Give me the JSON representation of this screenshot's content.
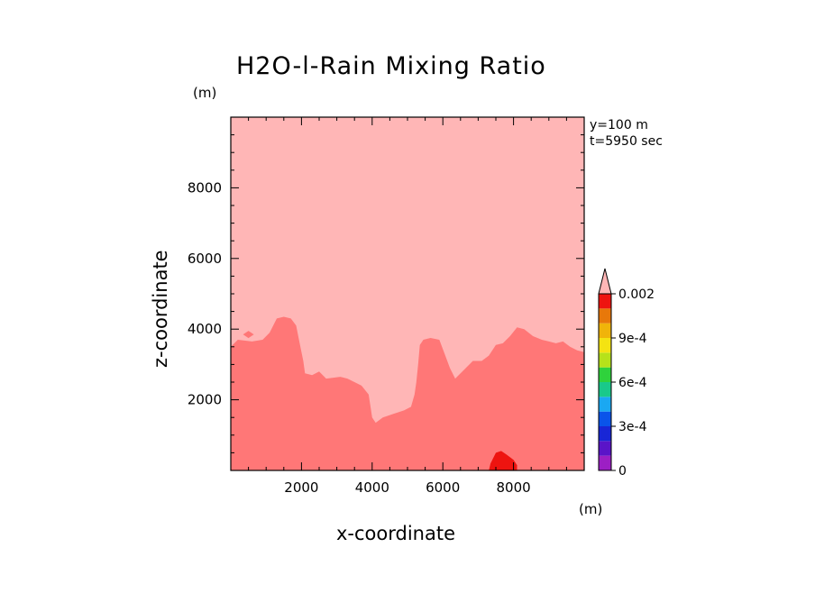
{
  "chart_data": {
    "type": "heatmap",
    "subtype": "filled-contour",
    "title": "H2O-l-Rain Mixing Ratio",
    "xlabel": "x-coordinate",
    "ylabel": "z-coordinate",
    "x_unit": "(m)",
    "y_unit": "(m)",
    "xlim": [
      0,
      10000
    ],
    "ylim": [
      0,
      10000
    ],
    "x_ticks": [
      {
        "value": 2000,
        "label": "2000"
      },
      {
        "value": 4000,
        "label": "4000"
      },
      {
        "value": 6000,
        "label": "6000"
      },
      {
        "value": 8000,
        "label": "8000"
      }
    ],
    "y_ticks": [
      {
        "value": 2000,
        "label": "2000"
      },
      {
        "value": 4000,
        "label": "4000"
      },
      {
        "value": 6000,
        "label": "6000"
      },
      {
        "value": 8000,
        "label": "8000"
      }
    ],
    "info_lines": [
      "y=100 m",
      "t=5950 sec"
    ],
    "colorbar": {
      "levels": [
        {
          "value": 0,
          "color": "#9c1fc4"
        },
        {
          "value": 0.0001,
          "color": "#5a14c8"
        },
        {
          "value": 0.0002,
          "color": "#1826d6"
        },
        {
          "value": 0.0003,
          "color": "#0a54ea"
        },
        {
          "value": 0.0004,
          "color": "#1aa8f2"
        },
        {
          "value": 0.0005,
          "color": "#19c98a"
        },
        {
          "value": 0.0006,
          "color": "#2fd23c"
        },
        {
          "value": 0.0007,
          "color": "#b6e21a"
        },
        {
          "value": 0.0008,
          "color": "#f4e312"
        },
        {
          "value": 0.0009,
          "color": "#f0b40a"
        },
        {
          "value": 0.001,
          "color": "#e8780a"
        },
        {
          "value": 0.0015,
          "color": "#ee1410"
        },
        {
          "value": 0.002,
          "color": "#ff7777"
        }
      ],
      "overflow_color": "#ffb6b6",
      "labels": [
        {
          "value": 0,
          "label": "0"
        },
        {
          "value": 0.0003,
          "label": "3e-4"
        },
        {
          "value": 0.0006,
          "label": "6e-4"
        },
        {
          "value": 0.0009,
          "label": "9e-4"
        },
        {
          "value": 0.002,
          "label": "0.002"
        }
      ]
    },
    "regions": [
      {
        "name": "above 0.002",
        "color": "#ffb6b6",
        "polygon": [
          [
            0,
            0
          ],
          [
            10000,
            0
          ],
          [
            10000,
            10000
          ],
          [
            0,
            10000
          ]
        ]
      },
      {
        "name": "0.0015 to 0.002",
        "color": "#ff7777",
        "polygon": [
          [
            0,
            0
          ],
          [
            0,
            3500
          ],
          [
            200,
            3700
          ],
          [
            600,
            3650
          ],
          [
            900,
            3700
          ],
          [
            1100,
            3900
          ],
          [
            1300,
            4300
          ],
          [
            1500,
            4350
          ],
          [
            1700,
            4300
          ],
          [
            1850,
            4100
          ],
          [
            1950,
            3600
          ],
          [
            2050,
            3100
          ],
          [
            2100,
            2750
          ],
          [
            2300,
            2700
          ],
          [
            2500,
            2800
          ],
          [
            2700,
            2600
          ],
          [
            3100,
            2650
          ],
          [
            3300,
            2600
          ],
          [
            3500,
            2500
          ],
          [
            3700,
            2400
          ],
          [
            3900,
            2150
          ],
          [
            4000,
            1500
          ],
          [
            4100,
            1350
          ],
          [
            4300,
            1500
          ],
          [
            4600,
            1600
          ],
          [
            4900,
            1700
          ],
          [
            5100,
            1800
          ],
          [
            5200,
            2150
          ],
          [
            5250,
            2500
          ],
          [
            5300,
            3000
          ],
          [
            5350,
            3550
          ],
          [
            5450,
            3700
          ],
          [
            5650,
            3750
          ],
          [
            5900,
            3700
          ],
          [
            6050,
            3300
          ],
          [
            6200,
            2900
          ],
          [
            6350,
            2600
          ],
          [
            6550,
            2800
          ],
          [
            6850,
            3100
          ],
          [
            7100,
            3100
          ],
          [
            7300,
            3250
          ],
          [
            7500,
            3550
          ],
          [
            7700,
            3600
          ],
          [
            7900,
            3800
          ],
          [
            8100,
            4050
          ],
          [
            8300,
            4000
          ],
          [
            8550,
            3800
          ],
          [
            8800,
            3700
          ],
          [
            9000,
            3650
          ],
          [
            9200,
            3600
          ],
          [
            9400,
            3650
          ],
          [
            9600,
            3500
          ],
          [
            9800,
            3400
          ],
          [
            10000,
            3350
          ],
          [
            10000,
            0
          ]
        ]
      },
      {
        "name": "0.001 to 0.0015",
        "color": "#ee1410",
        "polygon": [
          [
            7300,
            0
          ],
          [
            7350,
            200
          ],
          [
            7500,
            500
          ],
          [
            7650,
            550
          ],
          [
            7800,
            450
          ],
          [
            8000,
            300
          ],
          [
            8100,
            150
          ],
          [
            8100,
            0
          ]
        ]
      }
    ],
    "annotations": [
      {
        "shape": "diamond",
        "color": "#ff7777",
        "x": 500,
        "y": 3850
      }
    ]
  }
}
